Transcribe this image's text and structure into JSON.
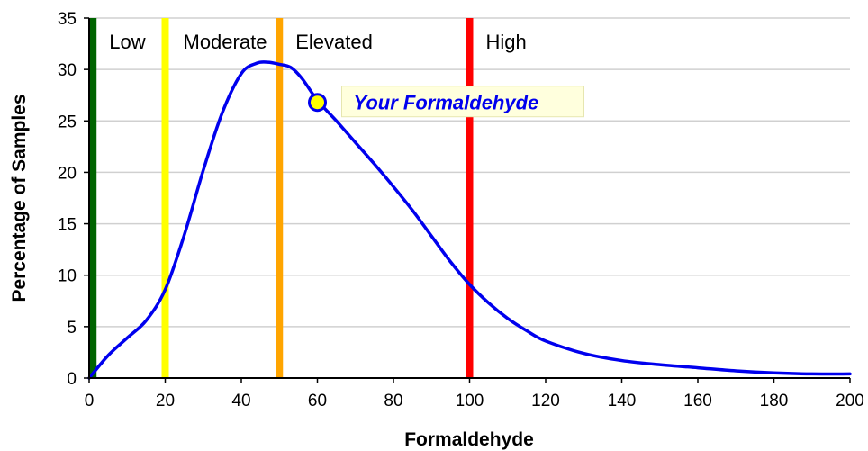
{
  "chart_data": {
    "type": "line",
    "xlabel": "Formaldehyde",
    "ylabel": "Percentage of Samples",
    "xlim": [
      0,
      200
    ],
    "ylim": [
      0,
      35
    ],
    "x_ticks": [
      0,
      20,
      40,
      60,
      80,
      100,
      120,
      140,
      160,
      180,
      200
    ],
    "y_ticks": [
      0,
      5,
      10,
      15,
      20,
      25,
      30,
      35
    ],
    "grid": "horizontal",
    "legend": "none",
    "series": [
      {
        "color": "#0000ee",
        "x": [
          0,
          5,
          10,
          15,
          20,
          25,
          30,
          35,
          40,
          44,
          47,
          50,
          53,
          56,
          60,
          65,
          70,
          75,
          80,
          85,
          90,
          95,
          100,
          105,
          110,
          115,
          120,
          130,
          140,
          150,
          160,
          170,
          180,
          190,
          200
        ],
        "y": [
          0,
          2.2,
          3.9,
          5.6,
          8.6,
          13.9,
          20.2,
          25.8,
          29.6,
          30.6,
          30.7,
          30.5,
          30.2,
          29.1,
          27.0,
          25.0,
          22.9,
          20.8,
          18.6,
          16.3,
          13.8,
          11.3,
          9.1,
          7.3,
          5.8,
          4.6,
          3.6,
          2.4,
          1.7,
          1.3,
          1.0,
          0.7,
          0.5,
          0.4,
          0.4
        ]
      }
    ],
    "thresholds": [
      {
        "label": "Low",
        "x": 1,
        "color": "#006400"
      },
      {
        "label": "Moderate",
        "x": 20,
        "color": "#ffff00"
      },
      {
        "label": "Elevated",
        "x": 50,
        "color": "#ffa500"
      },
      {
        "label": "High",
        "x": 100,
        "color": "#ff0000"
      }
    ],
    "marker": {
      "label": "Your Formaldehyde",
      "x": 60,
      "y": 26.8,
      "fill": "#ffff00",
      "stroke": "#0000ee",
      "label_color": "#0000ee",
      "label_bg": "#ffffdd"
    },
    "colors": {
      "grid": "#d0d0d0",
      "axis": "#000000"
    }
  }
}
